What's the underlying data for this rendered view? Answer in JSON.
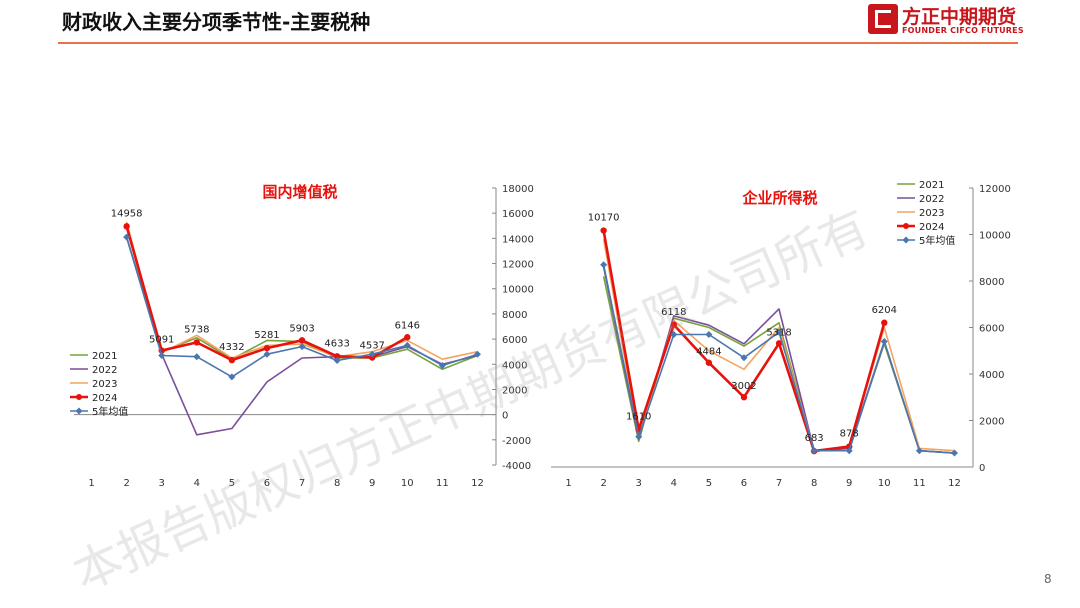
{
  "header": {
    "title": "财政收入主要分项季节性-主要税种",
    "logo_cn": "方正中期期货",
    "logo_en": "FOUNDER CIFCO FUTURES"
  },
  "page_number": "8",
  "watermark": "本报告版权归方正中期期货有限公司所有",
  "colors": {
    "2021": "#77a33a",
    "2022": "#7a4f9a",
    "2023": "#f4a460",
    "2024": "#e8120c",
    "5年均值": "#4a77b0",
    "accent": "#e8734a"
  },
  "chart_data": [
    {
      "type": "line",
      "title": "国内增值税",
      "categories": [
        "1",
        "2",
        "3",
        "4",
        "5",
        "6",
        "7",
        "8",
        "9",
        "10",
        "11",
        "12"
      ],
      "ylim": [
        -4000,
        18000
      ],
      "yticks": [
        "18000",
        "16000",
        "14000",
        "12000",
        "10000",
        "8000",
        "6000",
        "4000",
        "2000",
        "0",
        "-2000",
        "-4000"
      ],
      "legend_position": "left",
      "series": [
        {
          "name": "2021",
          "values": [
            null,
            14100,
            5000,
            6100,
            4400,
            5900,
            5800,
            4500,
            4500,
            5200,
            3600,
            4700
          ]
        },
        {
          "name": "2022",
          "values": [
            null,
            14100,
            4800,
            -1600,
            -1100,
            2600,
            4500,
            4600,
            4600,
            5400,
            4000,
            4700
          ]
        },
        {
          "name": "2023",
          "values": [
            null,
            15300,
            4900,
            6300,
            4500,
            5500,
            5600,
            4600,
            5000,
            5900,
            4400,
            5000
          ]
        },
        {
          "name": "2024",
          "values": [
            null,
            14958,
            5091,
            5738,
            4332,
            5281,
            5903,
            4633,
            4537,
            6146,
            null,
            null
          ]
        },
        {
          "name": "5年均值",
          "values": [
            null,
            14100,
            4700,
            4600,
            3000,
            4800,
            5400,
            4300,
            4800,
            5500,
            3900,
            4800
          ]
        }
      ],
      "data_labels": [
        "14958",
        "5091",
        "5738",
        "4332",
        "5281",
        "5903",
        "4633",
        "4537",
        "6146"
      ]
    },
    {
      "type": "line",
      "title": "企业所得税",
      "categories": [
        "1",
        "2",
        "3",
        "4",
        "5",
        "6",
        "7",
        "8",
        "9",
        "10",
        "11",
        "12"
      ],
      "ylim": [
        0,
        12000
      ],
      "yticks": [
        "12000",
        "10000",
        "8000",
        "6000",
        "4000",
        "2000",
        "0"
      ],
      "legend_position": "top-right",
      "series": [
        {
          "name": "2021",
          "values": [
            null,
            8200,
            1100,
            6400,
            6000,
            5200,
            6200,
            700,
            800,
            5300,
            700,
            600
          ]
        },
        {
          "name": "2022",
          "values": [
            null,
            8600,
            1200,
            6500,
            6100,
            5300,
            6800,
            700,
            800,
            5400,
            700,
            600
          ]
        },
        {
          "name": "2023",
          "values": [
            null,
            9800,
            1300,
            6300,
            5000,
            4200,
            6000,
            700,
            900,
            6000,
            800,
            700
          ]
        },
        {
          "name": "2024",
          "values": [
            null,
            10170,
            1610,
            6118,
            4484,
            3002,
            5318,
            683,
            878,
            6204,
            null,
            null
          ]
        },
        {
          "name": "5年均值",
          "values": [
            null,
            8700,
            1300,
            5700,
            5700,
            4700,
            5800,
            700,
            700,
            5400,
            700,
            600
          ]
        }
      ],
      "data_labels": [
        "10170",
        "1610",
        "6118",
        "4484",
        "3002",
        "5318",
        "683",
        "878",
        "6204"
      ]
    }
  ]
}
